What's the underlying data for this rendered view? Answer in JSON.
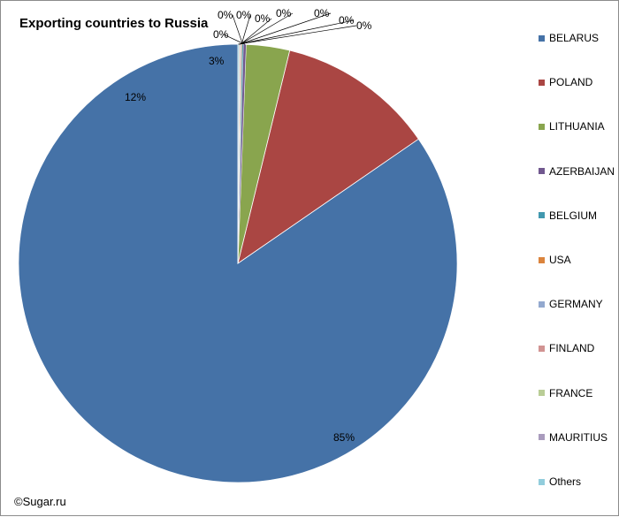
{
  "chart_data": {
    "type": "pie",
    "title": "Exporting countries to Russia",
    "credit": "©Sugar.ru",
    "legend_position": "right",
    "slices": [
      {
        "name": "BELARUS",
        "value": 84.6,
        "label": "85%",
        "color": "#4572A7"
      },
      {
        "name": "POLAND",
        "value": 11.6,
        "label": "12%",
        "color": "#AA4643"
      },
      {
        "name": "LITHUANIA",
        "value": 3.2,
        "label": "3%",
        "color": "#89A54E"
      },
      {
        "name": "AZERBAIJAN",
        "value": 0.2,
        "label": "0%",
        "color": "#71588F"
      },
      {
        "name": "BELGIUM",
        "value": 0.1,
        "label": "0%",
        "color": "#4198AF"
      },
      {
        "name": "USA",
        "value": 0.06,
        "label": "0%",
        "color": "#DB843D"
      },
      {
        "name": "GERMANY",
        "value": 0.05,
        "label": "0%",
        "color": "#93A9CF"
      },
      {
        "name": "FINLAND",
        "value": 0.05,
        "label": "0%",
        "color": "#D19392"
      },
      {
        "name": "FRANCE",
        "value": 0.04,
        "label": "0%",
        "color": "#B9CD96"
      },
      {
        "name": "MAURITIUS",
        "value": 0.04,
        "label": "0%",
        "color": "#A99BBD"
      },
      {
        "name": "Others",
        "value": 0.06,
        "label": "0%",
        "color": "#92CDDC"
      }
    ]
  }
}
